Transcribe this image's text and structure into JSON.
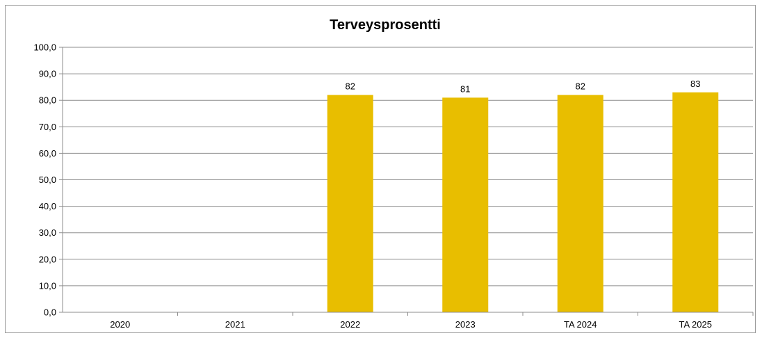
{
  "chart_data": {
    "type": "bar",
    "title": "Terveysprosentti",
    "xlabel": "",
    "ylabel": "",
    "categories": [
      "2020",
      "2021",
      "2022",
      "2023",
      "TA 2024",
      "TA 2025"
    ],
    "values": [
      null,
      null,
      82,
      81,
      82,
      83
    ],
    "data_labels": [
      "",
      "",
      "82",
      "81",
      "82",
      "83"
    ],
    "yticks": [
      "0,0",
      "10,0",
      "20,0",
      "30,0",
      "40,0",
      "50,0",
      "60,0",
      "70,0",
      "80,0",
      "90,0",
      "100,0"
    ],
    "ylim": [
      0,
      100
    ],
    "grid": true,
    "legend": "none",
    "bar_color": "#E8BE00",
    "grid_color": "#8c8c8c"
  }
}
